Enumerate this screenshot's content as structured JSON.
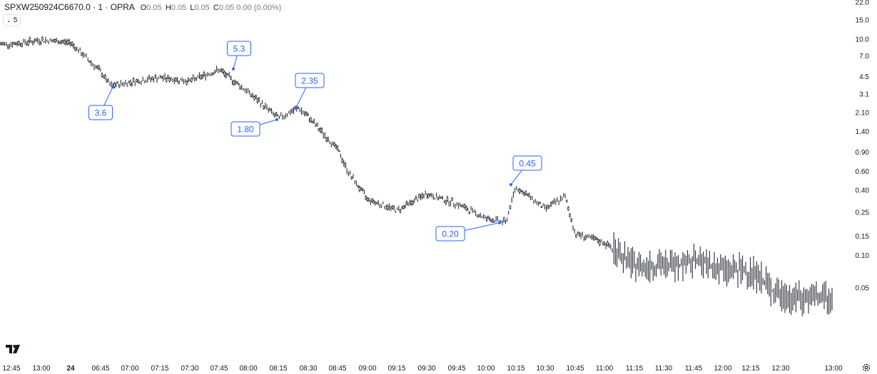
{
  "legend": {
    "symbol": "SPXW250924C6670.0 · 1 · OPRA",
    "o_label": "O",
    "o_value": "0.05",
    "h_label": "H",
    "h_value": "0.05",
    "l_label": "L",
    "l_value": "0.05",
    "c_label": "C",
    "c_value": "0.05",
    "change": "0.00 (0.00%)"
  },
  "interval": {
    "icon": "chevron-down-icon",
    "value": "5"
  },
  "colors": {
    "accent": "#2962ff",
    "candle": "#131722",
    "background": "#ffffff"
  },
  "chart_data": {
    "type": "candlestick",
    "scale": "log",
    "y_ticks": [
      "22.0",
      "15.0",
      "10.0",
      "7.0",
      "4.5",
      "3.1",
      "2.10",
      "1.40",
      "0.90",
      "0.60",
      "0.40",
      "0.25",
      "0.15",
      "0.10",
      "0.05"
    ],
    "x_ticks": [
      {
        "label": "12:45",
        "bold": false
      },
      {
        "label": "13:00",
        "bold": false
      },
      {
        "label": "24",
        "bold": true
      },
      {
        "label": "06:45",
        "bold": false
      },
      {
        "label": "07:00",
        "bold": false
      },
      {
        "label": "07:15",
        "bold": false
      },
      {
        "label": "07:30",
        "bold": false
      },
      {
        "label": "07:45",
        "bold": false
      },
      {
        "label": "08:00",
        "bold": false
      },
      {
        "label": "08:15",
        "bold": false
      },
      {
        "label": "08:30",
        "bold": false
      },
      {
        "label": "08:45",
        "bold": false
      },
      {
        "label": "09:00",
        "bold": false
      },
      {
        "label": "09:15",
        "bold": false
      },
      {
        "label": "09:30",
        "bold": false
      },
      {
        "label": "09:45",
        "bold": false
      },
      {
        "label": "10:00",
        "bold": false
      },
      {
        "label": "10:15",
        "bold": false
      },
      {
        "label": "10:30",
        "bold": false
      },
      {
        "label": "10:45",
        "bold": false
      },
      {
        "label": "11:00",
        "bold": false
      },
      {
        "label": "11:15",
        "bold": false
      },
      {
        "label": "11:30",
        "bold": false
      },
      {
        "label": "11:45",
        "bold": false
      },
      {
        "label": "12:00",
        "bold": false
      },
      {
        "label": "12:15",
        "bold": false
      },
      {
        "label": "12:30",
        "bold": false
      },
      {
        "label": "13:00",
        "bold": false
      }
    ],
    "price_path": [
      {
        "t": "12:45",
        "v": 9.0
      },
      {
        "t": "13:00",
        "v": 9.8
      },
      {
        "t": "24",
        "v": 9.3
      },
      {
        "t": "06:45",
        "v": 5.0
      },
      {
        "t": "06:50",
        "v": 3.7
      },
      {
        "t": "07:00",
        "v": 4.0
      },
      {
        "t": "07:15",
        "v": 4.4
      },
      {
        "t": "07:30",
        "v": 4.1
      },
      {
        "t": "07:45",
        "v": 5.2
      },
      {
        "t": "08:00",
        "v": 3.2
      },
      {
        "t": "08:15",
        "v": 1.85
      },
      {
        "t": "08:25",
        "v": 2.3
      },
      {
        "t": "08:30",
        "v": 1.9
      },
      {
        "t": "08:45",
        "v": 0.95
      },
      {
        "t": "08:50",
        "v": 0.6
      },
      {
        "t": "09:00",
        "v": 0.33
      },
      {
        "t": "09:15",
        "v": 0.26
      },
      {
        "t": "09:30",
        "v": 0.37
      },
      {
        "t": "09:45",
        "v": 0.3
      },
      {
        "t": "10:00",
        "v": 0.22
      },
      {
        "t": "10:10",
        "v": 0.2
      },
      {
        "t": "10:15",
        "v": 0.43
      },
      {
        "t": "10:30",
        "v": 0.27
      },
      {
        "t": "10:40",
        "v": 0.35
      },
      {
        "t": "10:45",
        "v": 0.16
      },
      {
        "t": "11:00",
        "v": 0.13
      },
      {
        "t": "11:15",
        "v": 0.08
      },
      {
        "t": "11:30",
        "v": 0.08
      },
      {
        "t": "11:45",
        "v": 0.09
      },
      {
        "t": "12:00",
        "v": 0.075
      },
      {
        "t": "12:15",
        "v": 0.07
      },
      {
        "t": "12:30",
        "v": 0.04
      },
      {
        "t": "13:00",
        "v": 0.04
      }
    ],
    "annotations": [
      {
        "label": "3.6",
        "value": 3.6,
        "kind": "low",
        "t": "06:50"
      },
      {
        "label": "5.3",
        "value": 5.3,
        "kind": "high",
        "t": "07:45"
      },
      {
        "label": "1.80",
        "value": 1.8,
        "kind": "low",
        "t": "08:15"
      },
      {
        "label": "2.35",
        "value": 2.35,
        "kind": "high",
        "t": "08:25"
      },
      {
        "label": "0.45",
        "value": 0.45,
        "kind": "high",
        "t": "10:15"
      },
      {
        "label": "0.20",
        "value": 0.2,
        "kind": "low",
        "t": "10:10"
      }
    ]
  }
}
